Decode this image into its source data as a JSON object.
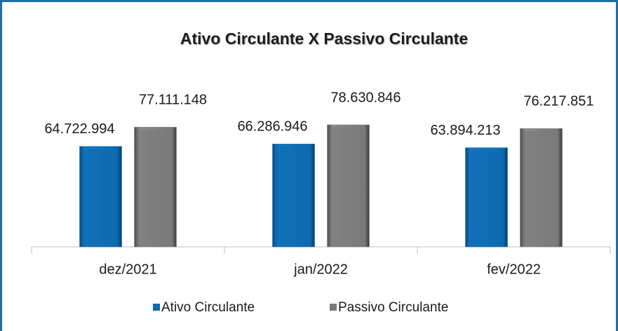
{
  "chart_data": {
    "type": "bar",
    "title": "Ativo Circulante X Passivo Circulante",
    "categories": [
      "dez/2021",
      "jan/2022",
      "fev/2022"
    ],
    "series": [
      {
        "name": "Ativo Circulante",
        "color": "#0e6bb0",
        "values": [
          64722994,
          66286946,
          63894213
        ],
        "value_labels": [
          "64.722.994",
          "66.286.946",
          "63.894.213"
        ]
      },
      {
        "name": "Passivo Circulante",
        "color": "#7a7a7a",
        "values": [
          77111148,
          78630846,
          76217851
        ],
        "value_labels": [
          "77.111.148",
          "78.630.846",
          "76.217.851"
        ]
      }
    ],
    "legend": "bottom"
  }
}
